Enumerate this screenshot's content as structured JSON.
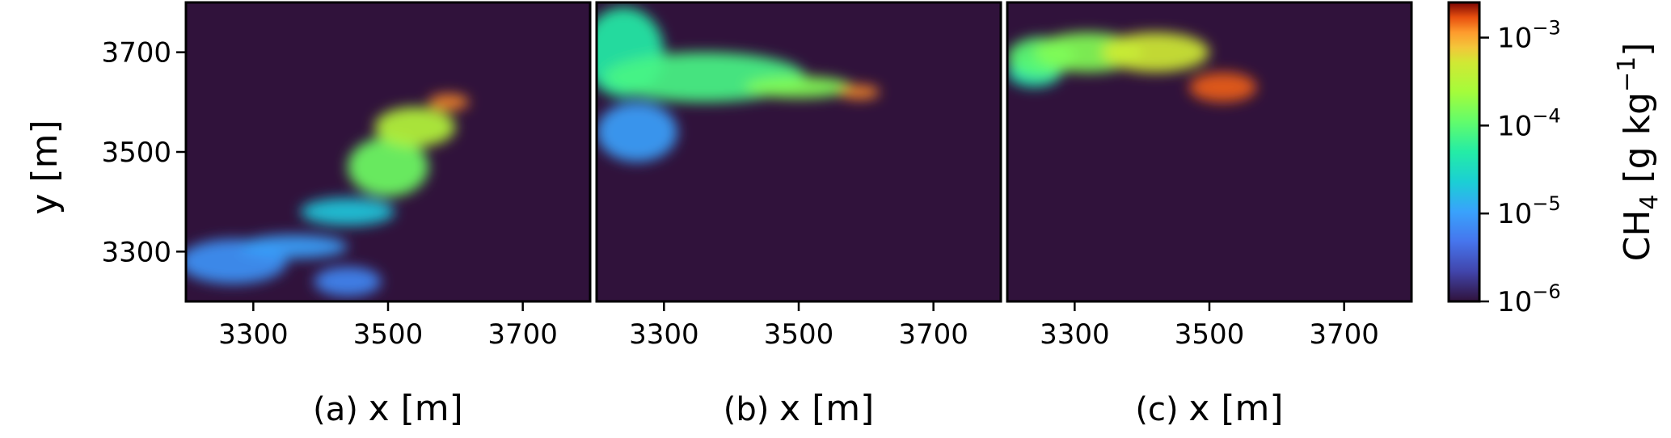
{
  "chart_data": {
    "type": "heatmap",
    "colormap": "turbo",
    "background_color": "#30123b",
    "x_ticks": [
      3300,
      3500,
      3700
    ],
    "y_ticks": [
      3300,
      3500,
      3700
    ],
    "xlim": [
      3200,
      3800
    ],
    "ylim": [
      3200,
      3800
    ],
    "ylabel": "y [m]",
    "panels": [
      {
        "tag": "(a)",
        "xlabel": "x [m]",
        "plume": [
          {
            "x": 3590,
            "y": 3600,
            "rx": 30,
            "ry": 16,
            "level": -2.9
          },
          {
            "x": 3540,
            "y": 3550,
            "rx": 60,
            "ry": 40,
            "level": -3.5
          },
          {
            "x": 3500,
            "y": 3470,
            "rx": 60,
            "ry": 60,
            "level": -3.9
          },
          {
            "x": 3440,
            "y": 3380,
            "rx": 70,
            "ry": 28,
            "level": -4.7
          },
          {
            "x": 3360,
            "y": 3310,
            "rx": 80,
            "ry": 24,
            "level": -5.0
          },
          {
            "x": 3270,
            "y": 3280,
            "rx": 80,
            "ry": 45,
            "level": -5.1
          },
          {
            "x": 3440,
            "y": 3240,
            "rx": 50,
            "ry": 30,
            "level": -5.2
          }
        ]
      },
      {
        "tag": "(b)",
        "xlabel": "x [m]",
        "plume": [
          {
            "x": 3590,
            "y": 3620,
            "rx": 30,
            "ry": 14,
            "level": -2.9
          },
          {
            "x": 3500,
            "y": 3630,
            "rx": 80,
            "ry": 22,
            "level": -3.8
          },
          {
            "x": 3360,
            "y": 3650,
            "rx": 150,
            "ry": 50,
            "level": -4.1
          },
          {
            "x": 3240,
            "y": 3700,
            "rx": 60,
            "ry": 90,
            "level": -4.3
          },
          {
            "x": 3260,
            "y": 3540,
            "rx": 60,
            "ry": 60,
            "level": -5.0
          }
        ]
      },
      {
        "tag": "(c)",
        "xlabel": "x [m]",
        "plume": [
          {
            "x": 3520,
            "y": 3630,
            "rx": 50,
            "ry": 30,
            "level": -2.8
          },
          {
            "x": 3420,
            "y": 3700,
            "rx": 80,
            "ry": 40,
            "level": -3.3
          },
          {
            "x": 3320,
            "y": 3700,
            "rx": 80,
            "ry": 40,
            "level": -3.8
          },
          {
            "x": 3250,
            "y": 3690,
            "rx": 50,
            "ry": 40,
            "level": -4.0
          },
          {
            "x": 3240,
            "y": 3660,
            "rx": 40,
            "ry": 30,
            "level": -4.4
          }
        ]
      }
    ],
    "colorbar": {
      "label_prefix": "CH",
      "label_sub": "4",
      "label_unit": " [g kg",
      "label_exp": "−1",
      "label_close": "]",
      "log_range": [
        -6,
        -2.6
      ],
      "ticks": [
        {
          "base": "10",
          "exp": "−6",
          "value": -6
        },
        {
          "base": "10",
          "exp": "−5",
          "value": -5
        },
        {
          "base": "10",
          "exp": "−4",
          "value": -4
        },
        {
          "base": "10",
          "exp": "−3",
          "value": -3
        }
      ]
    }
  }
}
